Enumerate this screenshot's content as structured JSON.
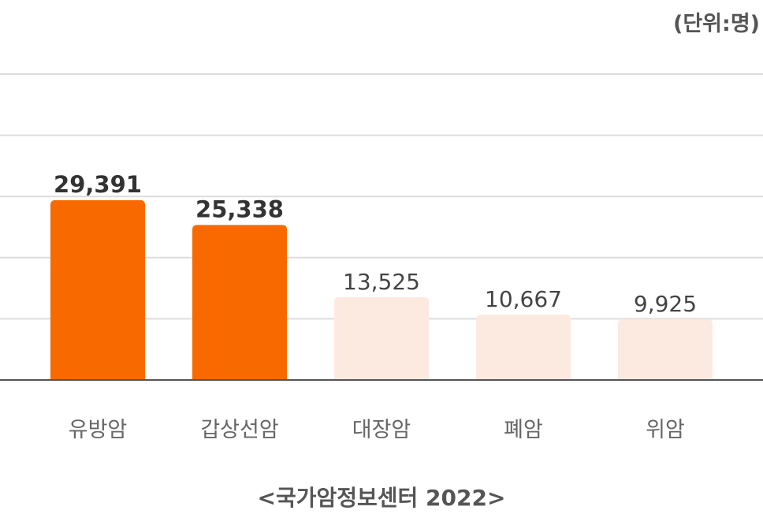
{
  "unit_label": "(단위:명)",
  "source": "<국가암정보센터 2022>",
  "colors": {
    "highlight": "#F86A00",
    "muted": "#FCEAE0",
    "grid": "#DDDDDD",
    "axis": "#555555",
    "label_text": "#666666",
    "value_dark": "#333333"
  },
  "chart_data": {
    "type": "bar",
    "title": "",
    "xlabel": "",
    "ylabel": "",
    "ylim": [
      0,
      50000
    ],
    "grid": true,
    "categories": [
      "유방암",
      "갑상선암",
      "대장암",
      "폐암",
      "위암"
    ],
    "values": [
      29391,
      25338,
      13525,
      10667,
      9925
    ],
    "value_labels": [
      "29,391",
      "25,338",
      "13,525",
      "10,667",
      "9,925"
    ],
    "highlighted": [
      true,
      true,
      false,
      false,
      false
    ]
  }
}
